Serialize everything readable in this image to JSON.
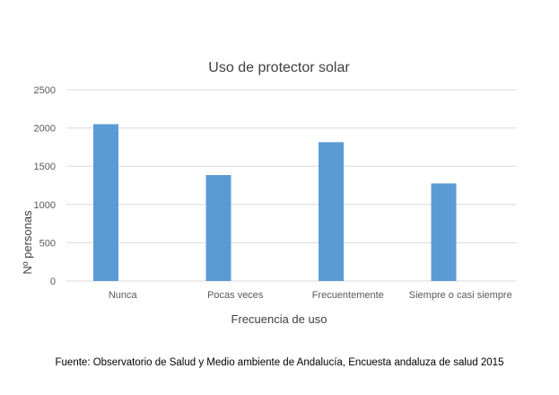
{
  "chart_data": {
    "type": "bar",
    "title": "Uso de protector solar",
    "xlabel": "Frecuencia de uso",
    "ylabel": "Nº personas",
    "categories": [
      "Nunca",
      "Pocas veces",
      "Frecuentemente",
      "Siempre o casi siempre"
    ],
    "values": [
      2050,
      1385,
      1815,
      1275
    ],
    "ylim": [
      0,
      2500
    ],
    "yticks": [
      0,
      500,
      1000,
      1500,
      2000,
      2500
    ],
    "grid": true,
    "bar_color": "#5b9bd5",
    "grid_color": "#d9d9d9"
  },
  "source": "Fuente: Observatorio de Salud y Medio ambiente de Andalucía, Encuesta andaluza de salud 2015"
}
